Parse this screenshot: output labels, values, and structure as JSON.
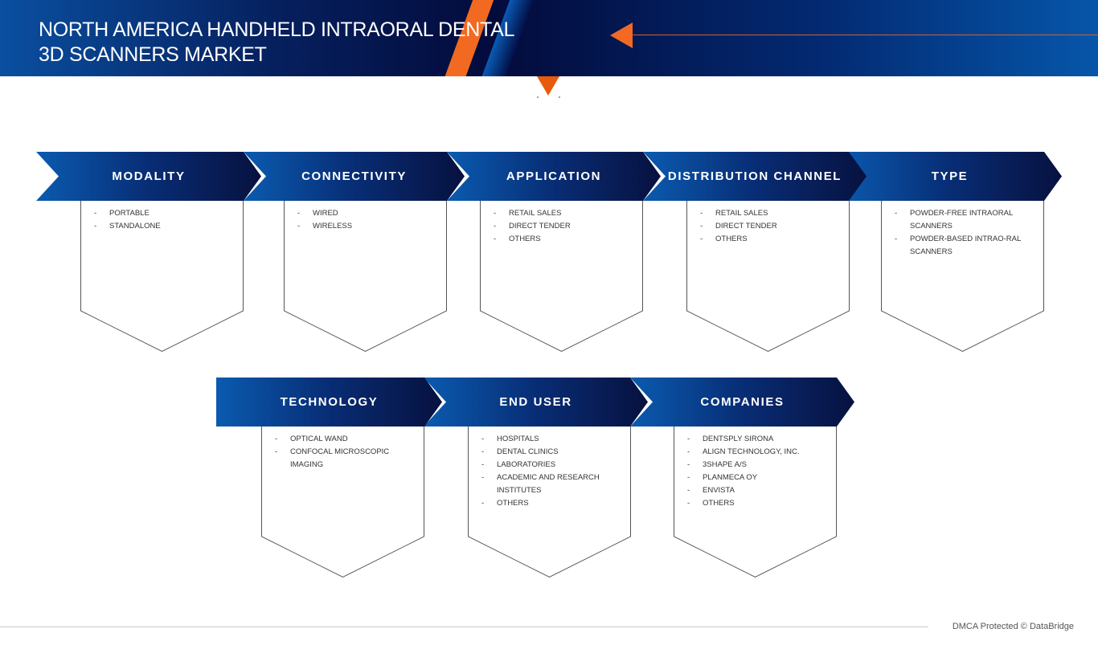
{
  "header": {
    "title_line1": "NORTH AMERICA HANDHELD INTRAORAL DENTAL",
    "title_line2": "3D SCANNERS MARKET"
  },
  "colors": {
    "dark_blue": "#07113f",
    "blue": "#0a5bb0",
    "orange": "#f26a22"
  },
  "segments": [
    {
      "label": "MODALITY",
      "items": [
        "PORTABLE",
        "STANDALONE"
      ]
    },
    {
      "label": "CONNECTIVITY",
      "items": [
        "WIRED",
        "WIRELESS"
      ]
    },
    {
      "label": "APPLICATION",
      "items": [
        "RETAIL SALES",
        "DIRECT TENDER",
        "OTHERS"
      ]
    },
    {
      "label": "DISTRIBUTION CHANNEL",
      "items": [
        "RETAIL SALES",
        "DIRECT TENDER",
        "OTHERS"
      ]
    },
    {
      "label": "TYPE",
      "items": [
        "POWDER-FREE INTRAORAL SCANNERS",
        "POWDER-BASED INTRAO-RAL SCANNERS"
      ]
    },
    {
      "label": "TECHNOLOGY",
      "items": [
        "OPTICAL WAND",
        "CONFOCAL MICROSCOPIC IMAGING"
      ]
    },
    {
      "label": "END USER",
      "items": [
        "HOSPITALS",
        "DENTAL CLINICS",
        "LABORATORIES",
        "ACADEMIC AND RESEARCH INSTITUTES",
        "OTHERS"
      ]
    },
    {
      "label": "COMPANIES",
      "items": [
        "DENTSPLY SIRONA",
        "ALIGN TECHNOLOGY, INC.",
        "3SHAPE A/S",
        "PLANMECA OY",
        "ENVISTA",
        "OTHERS"
      ]
    }
  ],
  "footer": {
    "text": "DMCA Protected © DataBridge"
  }
}
